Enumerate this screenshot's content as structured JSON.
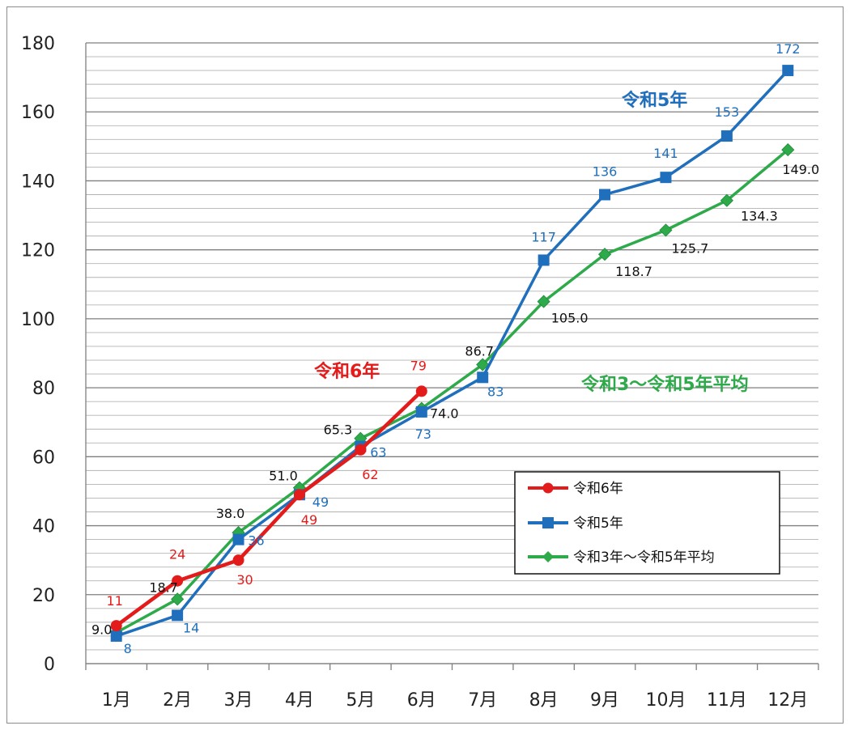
{
  "chart_data": {
    "type": "line",
    "categories": [
      "1月",
      "2月",
      "3月",
      "4月",
      "5月",
      "6月",
      "7月",
      "8月",
      "9月",
      "10月",
      "11月",
      "12月"
    ],
    "ylim": [
      0,
      180
    ],
    "yticks": [
      0,
      20,
      40,
      60,
      80,
      100,
      120,
      140,
      160,
      180
    ],
    "grid": true,
    "legend_placement": "lower-right",
    "series": [
      {
        "name": "令和6年",
        "color": "#e31b1b",
        "marker": "circle",
        "values": [
          11,
          24,
          30,
          49,
          62,
          79,
          null,
          null,
          null,
          null,
          null,
          null
        ],
        "labels": [
          "11",
          "24",
          "30",
          "49",
          "62",
          "79"
        ]
      },
      {
        "name": "令和5年",
        "color": "#1f6fbd",
        "marker": "square",
        "values": [
          8,
          14,
          36,
          49,
          63,
          73,
          83,
          117,
          136,
          141,
          153,
          172
        ],
        "labels": [
          "8",
          "14",
          "36",
          "49",
          "63",
          "73",
          "83",
          "117",
          "136",
          "141",
          "153",
          "172"
        ]
      },
      {
        "name": "令和3年～令和5年平均",
        "color": "#2eaa4a",
        "marker": "diamond",
        "values": [
          9.0,
          18.7,
          38.0,
          51.0,
          65.3,
          74.0,
          86.7,
          105.0,
          118.7,
          125.7,
          134.3,
          149.0
        ],
        "labels": [
          "9.0",
          "18.7",
          "38.0",
          "51.0",
          "65.3",
          "74.0",
          "86.7",
          "105.0",
          "118.7",
          "125.7",
          "134.3",
          "149.0"
        ]
      }
    ],
    "annotations": [
      {
        "text": "令和5年",
        "color": "#1f6fbd"
      },
      {
        "text": "令和6年",
        "color": "#e31b1b"
      },
      {
        "text": "令和3～令和5年平均",
        "color": "#2eaa4a"
      }
    ]
  }
}
